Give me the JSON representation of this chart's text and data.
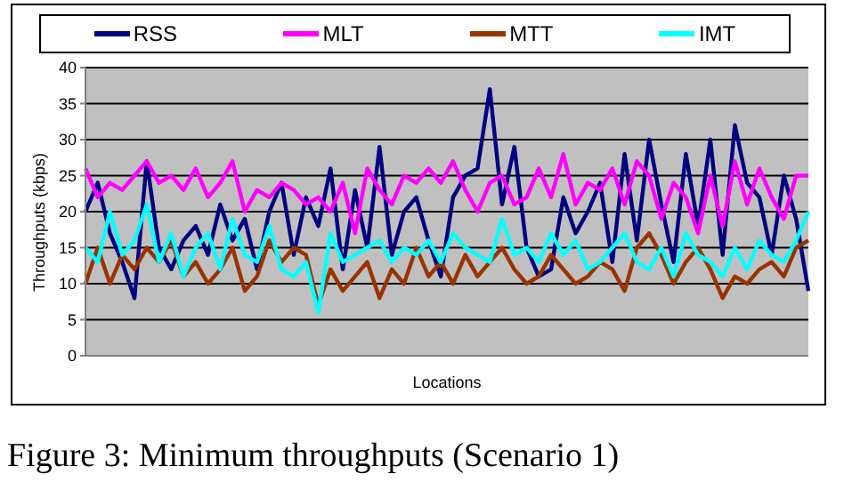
{
  "chart_data": {
    "type": "line",
    "xlabel": "Locations",
    "ylabel": "Throughputs (kbps)",
    "annotations": [
      "Figure 3: Minimum throughputs (Scenario 1)"
    ],
    "categories": [
      null,
      null,
      null,
      null,
      null,
      null,
      null,
      null,
      null,
      null,
      null,
      null,
      null,
      null,
      null,
      null,
      null,
      null,
      null,
      null,
      null,
      null,
      null,
      null,
      null,
      null,
      null,
      null,
      null,
      null,
      null,
      null,
      null,
      null,
      null,
      null,
      null,
      null,
      null,
      null,
      null,
      null,
      null,
      null,
      null,
      null,
      null,
      null,
      null,
      null,
      null,
      null,
      null,
      null,
      null,
      null,
      null,
      null,
      null,
      null
    ],
    "series": [
      {
        "name": "RSS",
        "color": "#000080",
        "values": [
          20,
          24,
          17,
          13,
          8,
          27,
          15,
          12,
          16,
          18,
          14,
          21,
          16,
          19,
          12,
          20,
          24,
          14,
          22,
          18,
          26,
          12,
          23,
          15,
          29,
          14,
          20,
          22,
          16,
          11,
          22,
          25,
          26,
          37,
          21,
          29,
          15,
          11,
          12,
          22,
          17,
          20,
          24,
          13,
          28,
          16,
          30,
          21,
          13,
          28,
          18,
          30,
          14,
          32,
          24,
          22,
          14,
          25,
          19,
          9
        ]
      },
      {
        "name": "MLT",
        "color": "#ff00ff",
        "values": [
          26,
          22,
          24,
          23,
          25,
          27,
          24,
          25,
          23,
          26,
          22,
          24,
          27,
          20,
          23,
          22,
          24,
          23,
          21,
          22,
          20,
          24,
          17,
          26,
          23,
          21,
          25,
          24,
          26,
          24,
          27,
          23,
          20,
          24,
          25,
          21,
          22,
          26,
          22,
          28,
          21,
          24,
          23,
          26,
          21,
          27,
          25,
          19,
          24,
          22,
          17,
          25,
          18,
          27,
          21,
          26,
          22,
          19,
          25,
          25
        ]
      },
      {
        "name": "MTT",
        "color": "#993300",
        "values": [
          10,
          15,
          10,
          14,
          12,
          15,
          13,
          16,
          11,
          13,
          10,
          12,
          15,
          9,
          11,
          16,
          13,
          15,
          14,
          7,
          12,
          9,
          11,
          13,
          8,
          12,
          10,
          15,
          11,
          13,
          10,
          14,
          11,
          13,
          15,
          12,
          10,
          11,
          14,
          12,
          10,
          11,
          13,
          12,
          9,
          15,
          17,
          14,
          10,
          13,
          15,
          12,
          8,
          11,
          10,
          12,
          13,
          11,
          15,
          16
        ]
      },
      {
        "name": "IMT",
        "color": "#00ffff",
        "values": [
          15,
          13,
          20,
          14,
          16,
          21,
          13,
          17,
          11,
          15,
          17,
          12,
          19,
          14,
          13,
          18,
          12,
          11,
          13,
          6,
          17,
          13,
          14,
          15,
          16,
          13,
          15,
          14,
          16,
          13,
          17,
          15,
          14,
          13,
          19,
          14,
          15,
          13,
          17,
          14,
          16,
          12,
          13,
          15,
          17,
          13,
          12,
          15,
          11,
          17,
          14,
          13,
          11,
          15,
          12,
          16,
          14,
          13,
          16,
          20
        ]
      }
    ],
    "ylim": [
      0,
      40
    ],
    "yticks": [
      0,
      5,
      10,
      15,
      20,
      25,
      30,
      35,
      40
    ],
    "grid": "y",
    "legend": "top",
    "tick_labels": "y",
    "marker": "none",
    "line_style": "solid"
  }
}
